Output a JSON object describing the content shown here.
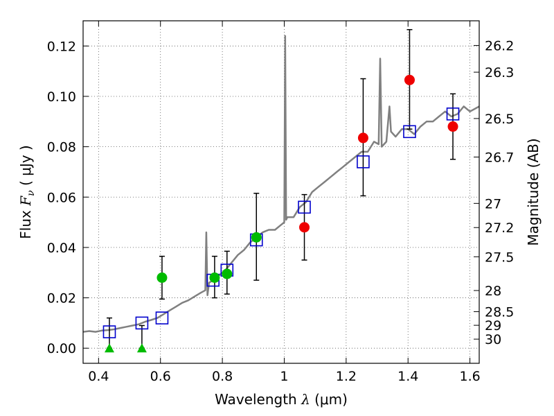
{
  "chart_data": {
    "type": "scatter",
    "title": "",
    "xlabel": {
      "prefix": "Wavelength  ",
      "symbol": "λ",
      "unit": " (μm)"
    },
    "ylabel": {
      "prefix": "Flux  ",
      "symbol": "F",
      "subscript": "ν",
      "unit": "  ( μJy )"
    },
    "ylabel_right": "Magnitude (AB)",
    "xlim": [
      0.35,
      1.63
    ],
    "ylim": [
      -0.006,
      0.13
    ],
    "grid": true,
    "x_ticks": [
      0.4,
      0.6,
      0.8,
      1.0,
      1.2,
      1.4,
      1.6
    ],
    "x_tick_labels": [
      "0.4",
      "0.6",
      "0.8",
      "1",
      "1.2",
      "1.4",
      "1.6"
    ],
    "y_ticks": [
      0.0,
      0.02,
      0.04,
      0.06,
      0.08,
      0.1,
      0.12
    ],
    "y_tick_labels": [
      "0.00",
      "0.02",
      "0.04",
      "0.06",
      "0.08",
      "0.10",
      "0.12"
    ],
    "mag_ticks": [
      {
        "label": "26.2",
        "flux": 0.1202
      },
      {
        "label": "26.3",
        "flux": 0.1096
      },
      {
        "label": "26.5",
        "flux": 0.0912
      },
      {
        "label": "26.7",
        "flux": 0.0759
      },
      {
        "label": "27",
        "flux": 0.0575
      },
      {
        "label": "27.2",
        "flux": 0.0479
      },
      {
        "label": "27.5",
        "flux": 0.0363
      },
      {
        "label": "28",
        "flux": 0.0229
      },
      {
        "label": "28.5",
        "flux": 0.0145
      },
      {
        "label": "29",
        "flux": 0.0091
      },
      {
        "label": "30",
        "flux": 0.0036
      }
    ],
    "colors": {
      "model_sed": "#808080",
      "model_photometry": "#0000cc",
      "green_points": "#00bb00",
      "red_points": "#ee0000",
      "errorbars": "#000000",
      "grid": "#555555"
    },
    "series": [
      {
        "name": "model_sed",
        "type": "line",
        "x": [
          0.35,
          0.37,
          0.39,
          0.41,
          0.43,
          0.45,
          0.47,
          0.49,
          0.51,
          0.53,
          0.55,
          0.57,
          0.59,
          0.61,
          0.63,
          0.65,
          0.67,
          0.69,
          0.71,
          0.73,
          0.745,
          0.748,
          0.752,
          0.757,
          0.77,
          0.79,
          0.81,
          0.83,
          0.85,
          0.87,
          0.89,
          0.91,
          0.93,
          0.95,
          0.97,
          0.99,
          1.0,
          1.003,
          1.006,
          1.01,
          1.03,
          1.05,
          1.07,
          1.09,
          1.11,
          1.13,
          1.15,
          1.17,
          1.19,
          1.21,
          1.23,
          1.25,
          1.27,
          1.29,
          1.305,
          1.31,
          1.315,
          1.33,
          1.34,
          1.345,
          1.36,
          1.38,
          1.4,
          1.42,
          1.44,
          1.46,
          1.48,
          1.5,
          1.52,
          1.54,
          1.56,
          1.58,
          1.6,
          1.63
        ],
        "y": [
          0.0065,
          0.0068,
          0.0065,
          0.007,
          0.0072,
          0.0075,
          0.008,
          0.0085,
          0.009,
          0.0095,
          0.0105,
          0.0112,
          0.012,
          0.0135,
          0.015,
          0.0165,
          0.018,
          0.019,
          0.0205,
          0.022,
          0.023,
          0.046,
          0.021,
          0.026,
          0.027,
          0.029,
          0.031,
          0.034,
          0.037,
          0.039,
          0.042,
          0.044,
          0.046,
          0.047,
          0.047,
          0.049,
          0.05,
          0.124,
          0.051,
          0.052,
          0.052,
          0.056,
          0.058,
          0.062,
          0.064,
          0.066,
          0.068,
          0.07,
          0.072,
          0.074,
          0.076,
          0.078,
          0.078,
          0.082,
          0.081,
          0.115,
          0.08,
          0.082,
          0.096,
          0.086,
          0.084,
          0.087,
          0.087,
          0.085,
          0.088,
          0.09,
          0.09,
          0.092,
          0.094,
          0.092,
          0.093,
          0.096,
          0.094,
          0.096
        ]
      },
      {
        "name": "model_photometry",
        "type": "open_square",
        "x": [
          0.435,
          0.54,
          0.605,
          0.77,
          0.815,
          0.91,
          1.065,
          1.255,
          1.405,
          1.545
        ],
        "y": [
          0.0065,
          0.01,
          0.012,
          0.027,
          0.031,
          0.043,
          0.056,
          0.074,
          0.086,
          0.093
        ]
      },
      {
        "name": "green_detections",
        "type": "filled_circle",
        "x": [
          0.605,
          0.775,
          0.815,
          0.91
        ],
        "y": [
          0.028,
          0.028,
          0.0295,
          0.044
        ],
        "yerr_low": [
          0.0085,
          0.008,
          0.008,
          0.017
        ],
        "yerr_high": [
          0.0085,
          0.0085,
          0.009,
          0.0175
        ]
      },
      {
        "name": "green_upper_limits",
        "type": "filled_triangle",
        "x": [
          0.435,
          0.54
        ],
        "y": [
          0.0,
          0.0
        ],
        "yerr_high": [
          0.012,
          0.009
        ]
      },
      {
        "name": "red_detections",
        "type": "filled_circle",
        "x": [
          1.065,
          1.255,
          1.405,
          1.545
        ],
        "y": [
          0.048,
          0.0835,
          0.1065,
          0.088
        ],
        "yerr_low": [
          0.013,
          0.023,
          0.0195,
          0.013
        ],
        "yerr_high": [
          0.013,
          0.0235,
          0.02,
          0.013
        ]
      }
    ]
  }
}
